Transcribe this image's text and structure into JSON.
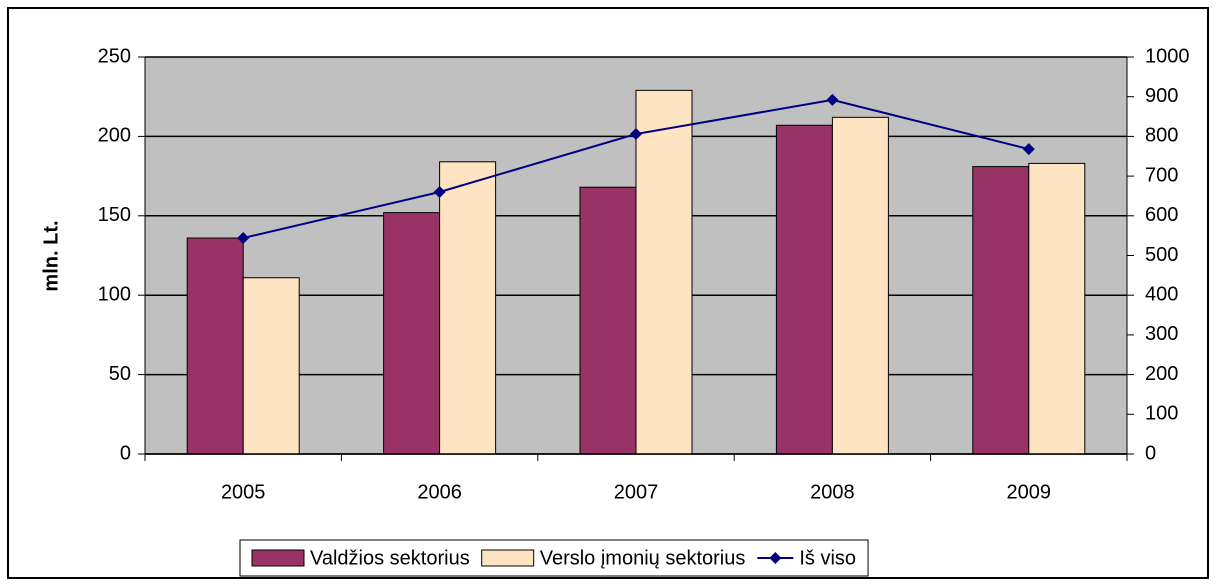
{
  "chart_data": {
    "type": "bar",
    "ylabel": "mln. Lt.",
    "categories": [
      "2005",
      "2006",
      "2007",
      "2008",
      "2009"
    ],
    "series": [
      {
        "name": "Valdžios sektorius",
        "color": "#993366",
        "values": [
          136,
          152,
          168,
          207,
          181
        ]
      },
      {
        "name": "Verslo įmonių sektorius",
        "color": "#ffe4c4",
        "values": [
          111,
          184,
          229,
          212,
          183
        ]
      },
      {
        "name": "Iš viso",
        "type": "line",
        "axis": "y2",
        "color": "#000080",
        "values": [
          544,
          660,
          806,
          892,
          768
        ]
      }
    ],
    "ylim": [
      0,
      250
    ],
    "yticks": [
      0,
      50,
      100,
      150,
      200,
      250
    ],
    "y2lim": [
      0,
      1000
    ],
    "y2ticks": [
      0,
      100,
      200,
      300,
      400,
      500,
      600,
      700,
      800,
      900,
      1000
    ],
    "grid": true,
    "plot_background": "#c0c0c0",
    "legend": "bottom"
  }
}
